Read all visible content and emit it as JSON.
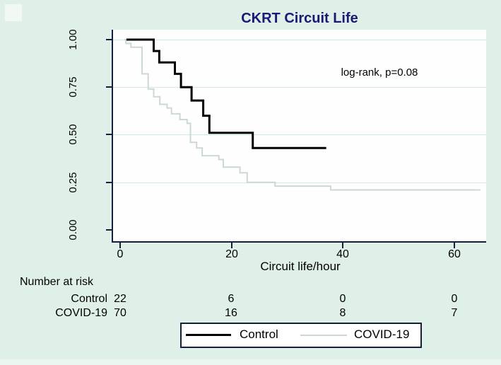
{
  "chart_data": {
    "type": "line",
    "subtype": "kaplan-meier-step",
    "title": "CKRT Circuit Life",
    "annotation": "log-rank, p=0.08",
    "xlabel": "Circuit life/hour",
    "ylabel": "",
    "xticks": [
      "0",
      "20",
      "40",
      "60"
    ],
    "yticks": [
      "0.00",
      "0.25",
      "0.50",
      "0.75",
      "1.00"
    ],
    "xlim": [
      0,
      65.8
    ],
    "ylim": [
      0,
      1
    ],
    "grid": "horizontal",
    "legend_position": "bottom",
    "series": [
      {
        "name": "Control",
        "color": "#000000",
        "stroke_width": 3,
        "points": [
          [
            1.2,
            1.0
          ],
          [
            6.1,
            0.94
          ],
          [
            7.1,
            0.88
          ],
          [
            9.9,
            0.82
          ],
          [
            11.0,
            0.75
          ],
          [
            12.9,
            0.68
          ],
          [
            15.0,
            0.6
          ],
          [
            16.1,
            0.51
          ],
          [
            23.9,
            0.43
          ]
        ],
        "end_t": 37.1
      },
      {
        "name": "COVID-19",
        "color": "#ccd9d2",
        "stroke_width": 2,
        "points": [
          [
            0.8,
            1.0
          ],
          [
            1.1,
            0.98
          ],
          [
            2.0,
            0.96
          ],
          [
            4.0,
            0.82
          ],
          [
            5.1,
            0.74
          ],
          [
            6.1,
            0.7
          ],
          [
            7.2,
            0.66
          ],
          [
            8.5,
            0.64
          ],
          [
            9.3,
            0.61
          ],
          [
            10.8,
            0.58
          ],
          [
            12.1,
            0.56
          ],
          [
            12.7,
            0.46
          ],
          [
            13.8,
            0.43
          ],
          [
            14.8,
            0.39
          ],
          [
            17.8,
            0.37
          ],
          [
            18.6,
            0.33
          ],
          [
            21.6,
            0.3
          ],
          [
            22.9,
            0.25
          ],
          [
            27.9,
            0.23
          ],
          [
            37.9,
            0.21
          ]
        ],
        "end_t": 64.8
      }
    ],
    "risk_table": {
      "title": "Number at risk",
      "time_points": [
        "0",
        "20",
        "40",
        "60"
      ],
      "rows": [
        {
          "label": "Control",
          "values": [
            "22",
            "6",
            "0",
            "0"
          ]
        },
        {
          "label": "COVID-19",
          "values": [
            "70",
            "16",
            "8",
            "7"
          ]
        }
      ]
    }
  },
  "colors": {
    "figure_background": "#dff0e9",
    "plot_background": "#fefefe",
    "gridline": "#d3eadf",
    "axis": "#17203a",
    "title_text": "#1a1a75",
    "control_line": "#000000",
    "covid_line": "#ccd9d2"
  }
}
